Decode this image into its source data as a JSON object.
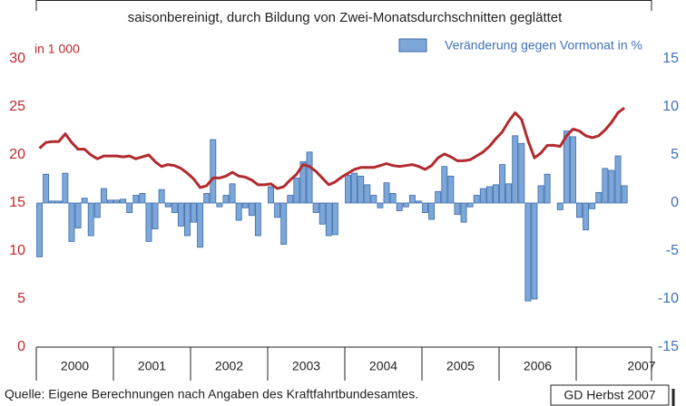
{
  "chart_data": {
    "type": "bar-line",
    "subtitle": "saisonbereinigt, durch Bildung von Zwei-Monatsdurchschnitten geglättet",
    "y_label": "in 1 000",
    "source": "Quelle: Eigene Berechnungen nach Angaben des Kraftfahrtbundesamtes.",
    "credit": "GD Herbst 2007",
    "categories": [
      "2000",
      "2001",
      "2002",
      "2003",
      "2004",
      "2005",
      "2006",
      "2007"
    ],
    "ylim": [
      0,
      30
    ],
    "yticks": [
      0,
      5,
      10,
      15,
      20,
      25,
      30
    ],
    "y2lim": [
      -15,
      15
    ],
    "y2ticks": [
      -15,
      -10,
      -5,
      0,
      5,
      10,
      15
    ],
    "series": [
      {
        "name": "Veränderung gegen Vormonat in %",
        "type": "bar",
        "axis": "y2",
        "color": "#7da7d9",
        "values": [
          [
            -5.6,
            3.0,
            0.2,
            0.2,
            3.1,
            -4.0,
            -2.6,
            0.5,
            -3.4,
            -1.5,
            1.5,
            0.3
          ],
          [
            0.3,
            0.4,
            -1.0,
            0.8,
            1.0,
            -4.0,
            -2.7,
            1.4,
            -0.4,
            -1.0,
            -2.4,
            -3.4
          ],
          [
            -2.0,
            -4.6,
            1.0,
            6.6,
            -0.4,
            0.8,
            2.0,
            -1.8,
            -0.5,
            -1.3,
            -3.4,
            0.0
          ],
          [
            1.7,
            -1.5,
            -4.3,
            0.8,
            2.6,
            4.3,
            5.3,
            -1.0,
            -2.2,
            -3.4,
            -3.3,
            0.0
          ],
          [
            2.9,
            3.1,
            2.8,
            1.9,
            0.8,
            -0.5,
            2.1,
            1.0,
            -0.8,
            -0.4,
            0.8,
            0.2
          ],
          [
            -1.0,
            -1.7,
            1.2,
            3.8,
            2.8,
            -1.2,
            -2.0,
            -0.4,
            0.8,
            1.5,
            1.7,
            1.9
          ],
          [
            4.0,
            2.0,
            7.0,
            6.2,
            -10.2,
            -10.0,
            1.8,
            3.0,
            0.0,
            -0.7,
            7.5,
            6.9
          ],
          [
            -1.5,
            -2.8,
            -0.6,
            1.1,
            3.6,
            3.4,
            4.9,
            1.8
          ]
        ]
      },
      {
        "type": "line",
        "axis": "y",
        "color": "#b22a2e",
        "values": [
          [
            20.7,
            21.3,
            21.4,
            21.4,
            22.2,
            21.3,
            20.6,
            20.6,
            20.0,
            19.6,
            19.9,
            19.9
          ],
          [
            19.9,
            19.8,
            19.9,
            19.6,
            19.8,
            20.0,
            19.3,
            18.8,
            19.0,
            18.9,
            18.6,
            18.1
          ],
          [
            17.5,
            16.6,
            16.8,
            17.6,
            17.6,
            17.8,
            18.2,
            17.8,
            17.7,
            17.4,
            16.9,
            16.9
          ],
          [
            17.0,
            16.5,
            16.7,
            17.4,
            18.0,
            19.0,
            18.8,
            18.3,
            17.6,
            16.9,
            17.2,
            17.7
          ],
          [
            18.1,
            18.5,
            18.7,
            18.7,
            18.7,
            18.9,
            19.1,
            18.9,
            18.8,
            18.9,
            19.0,
            18.8
          ],
          [
            18.5,
            18.9,
            19.7,
            20.1,
            19.8,
            19.4,
            19.4,
            19.5,
            19.9,
            20.3,
            20.9,
            21.7
          ],
          [
            22.4,
            23.5,
            24.4,
            23.7,
            21.5,
            19.7,
            20.2,
            21.0,
            21.0,
            20.9,
            22.0,
            22.7
          ],
          [
            22.5,
            22.0,
            21.8,
            22.0,
            22.6,
            23.4,
            24.4,
            24.9
          ]
        ]
      }
    ]
  }
}
